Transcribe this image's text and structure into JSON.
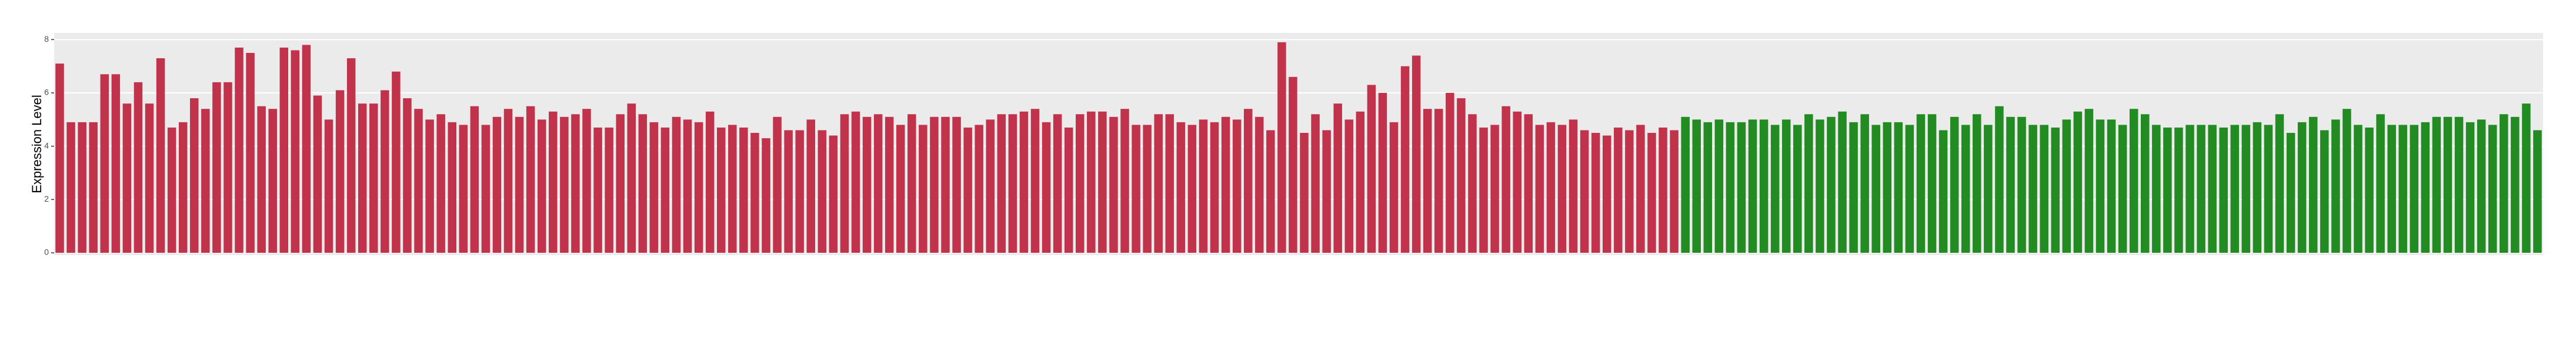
{
  "chart_data": {
    "type": "bar",
    "y_label": "Expression Level",
    "ylim": [
      0,
      8.25
    ],
    "yticks": [
      0,
      2,
      4,
      6,
      8
    ],
    "grid": true,
    "series": [
      {
        "color": "#c0334a",
        "values": [
          7.1,
          4.9,
          4.9,
          4.9,
          6.7,
          6.7,
          5.6,
          6.4,
          5.6,
          7.3,
          4.7,
          4.9,
          5.8,
          5.4,
          6.4,
          6.4,
          7.7,
          7.5,
          5.5,
          5.4,
          7.7,
          7.6,
          7.8,
          5.9,
          5.0,
          6.1,
          7.3,
          5.6,
          5.6,
          6.1,
          6.8,
          5.8,
          5.4,
          5.0,
          5.2,
          4.9,
          4.8,
          5.5,
          4.8,
          5.1,
          5.4,
          5.1,
          5.5,
          5.0,
          5.3,
          5.1,
          5.2,
          5.4,
          4.7,
          4.7,
          5.2,
          5.6,
          5.2,
          4.9,
          4.7,
          5.1,
          5.0,
          4.9,
          5.3,
          4.7,
          4.8,
          4.7,
          4.5,
          4.3,
          5.1,
          4.6,
          4.6,
          5.0,
          4.6,
          4.4,
          5.2,
          5.3,
          5.1,
          5.2,
          5.1,
          4.8,
          5.2,
          4.8,
          5.1,
          5.1,
          5.1,
          4.7,
          4.8,
          5.0,
          5.2,
          5.2,
          5.3,
          5.4,
          4.9,
          5.2,
          4.7,
          5.2,
          5.3,
          5.3,
          5.1,
          5.4,
          4.8,
          4.8,
          5.2,
          5.2,
          4.9,
          4.8,
          5.0,
          4.9,
          5.1,
          5.0,
          5.4,
          5.1,
          4.6,
          7.9,
          6.6,
          4.5,
          5.2,
          4.6,
          5.6,
          5.0,
          5.3,
          6.3,
          6.0,
          4.9,
          7.0,
          7.4,
          5.4,
          5.4,
          6.0,
          5.8,
          5.2,
          4.7,
          4.8,
          5.5,
          5.3,
          5.2,
          4.8,
          4.9,
          4.8,
          5.0,
          4.6,
          4.5,
          4.4,
          4.7,
          4.6,
          4.8,
          4.5,
          4.7,
          4.6
        ]
      },
      {
        "color": "#228b22",
        "values": [
          5.1,
          5.0,
          4.9,
          5.0,
          4.9,
          4.9,
          5.0,
          5.0,
          4.8,
          5.0,
          4.8,
          5.2,
          5.0,
          5.1,
          5.3,
          4.9,
          5.2,
          4.8,
          4.9,
          4.9,
          4.8,
          5.2,
          5.2,
          4.6,
          5.1,
          4.8,
          5.2,
          4.8,
          5.5,
          5.1,
          5.1,
          4.8,
          4.8,
          4.7,
          5.0,
          5.3,
          5.4,
          5.0,
          5.0,
          4.8,
          5.4,
          5.2,
          4.8,
          4.7,
          4.7,
          4.8,
          4.8,
          4.8,
          4.7,
          4.8,
          4.8,
          4.9,
          4.8,
          5.2,
          4.5,
          4.9,
          5.1,
          4.6,
          5.0,
          5.4,
          4.8,
          4.7,
          5.2,
          4.8,
          4.8,
          4.8,
          4.9,
          5.1,
          5.1,
          5.1,
          4.9,
          5.0,
          4.8,
          5.2,
          5.1,
          5.6,
          4.6
        ]
      }
    ]
  }
}
